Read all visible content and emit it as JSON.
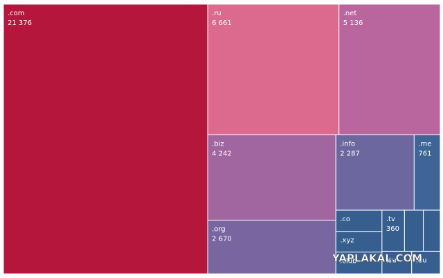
{
  "chart_data": {
    "type": "treemap",
    "categories": [
      ".com",
      ".ru",
      ".net",
      ".biz",
      ".org",
      ".info",
      ".me",
      ".co",
      ".xyz",
      ".club",
      ".tv",
      null,
      null,
      ".su",
      ".eu"
    ],
    "values": [
      21376,
      6661,
      5136,
      4242,
      2670,
      2287,
      761,
      380,
      370,
      390,
      360,
      300,
      270,
      260,
      250
    ],
    "value_labels": [
      "21 376",
      "6 661",
      "5 136",
      "4 242",
      "2 670",
      "2 287",
      "761",
      null,
      null,
      null,
      "360",
      null,
      null,
      null,
      null
    ],
    "colors": [
      "#b5173c",
      "#dc6a8e",
      "#b9659e",
      "#a1659f",
      "#7965a0",
      "#6c679f",
      "#3f6496",
      "#365f90",
      "#365f90",
      "#365f90",
      "#365f90",
      "#365f90",
      "#365f90",
      "#365f90",
      "#365f90"
    ],
    "watermark": "YAPLAKAL.COM"
  }
}
